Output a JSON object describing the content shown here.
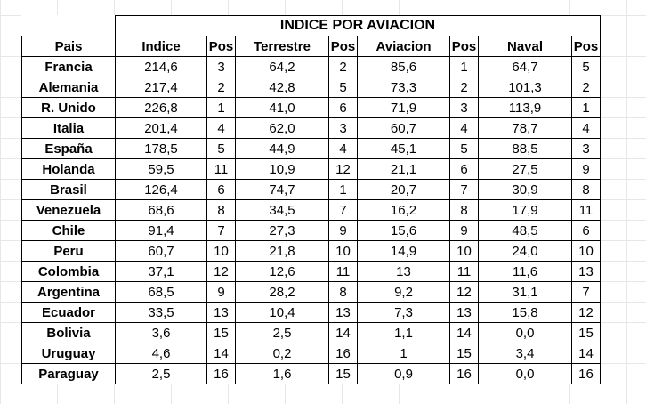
{
  "title": "INDICE POR AVIACION",
  "headers": [
    "Pais",
    "Indice",
    "Pos",
    "Terrestre",
    "Pos",
    "Aviacion",
    "Pos",
    "Naval",
    "Pos"
  ],
  "rows": [
    [
      "Francia",
      "214,6",
      "3",
      "64,2",
      "2",
      "85,6",
      "1",
      "64,7",
      "5"
    ],
    [
      "Alemania",
      "217,4",
      "2",
      "42,8",
      "5",
      "73,3",
      "2",
      "101,3",
      "2"
    ],
    [
      "R. Unido",
      "226,8",
      "1",
      "41,0",
      "6",
      "71,9",
      "3",
      "113,9",
      "1"
    ],
    [
      "Italia",
      "201,4",
      "4",
      "62,0",
      "3",
      "60,7",
      "4",
      "78,7",
      "4"
    ],
    [
      "España",
      "178,5",
      "5",
      "44,9",
      "4",
      "45,1",
      "5",
      "88,5",
      "3"
    ],
    [
      "Holanda",
      "59,5",
      "11",
      "10,9",
      "12",
      "21,1",
      "6",
      "27,5",
      "9"
    ],
    [
      "Brasil",
      "126,4",
      "6",
      "74,7",
      "1",
      "20,7",
      "7",
      "30,9",
      "8"
    ],
    [
      "Venezuela",
      "68,6",
      "8",
      "34,5",
      "7",
      "16,2",
      "8",
      "17,9",
      "11"
    ],
    [
      "Chile",
      "91,4",
      "7",
      "27,3",
      "9",
      "15,6",
      "9",
      "48,5",
      "6"
    ],
    [
      "Peru",
      "60,7",
      "10",
      "21,8",
      "10",
      "14,9",
      "10",
      "24,0",
      "10"
    ],
    [
      "Colombia",
      "37,1",
      "12",
      "12,6",
      "11",
      "13",
      "11",
      "11,6",
      "13"
    ],
    [
      "Argentina",
      "68,5",
      "9",
      "28,2",
      "8",
      "9,2",
      "12",
      "31,1",
      "7"
    ],
    [
      "Ecuador",
      "33,5",
      "13",
      "10,4",
      "13",
      "7,3",
      "13",
      "15,8",
      "12"
    ],
    [
      "Bolivia",
      "3,6",
      "15",
      "2,5",
      "14",
      "1,1",
      "14",
      "0,0",
      "15"
    ],
    [
      "Uruguay",
      "4,6",
      "14",
      "0,2",
      "16",
      "1",
      "15",
      "3,4",
      "14"
    ],
    [
      "Paraguay",
      "2,5",
      "16",
      "1,6",
      "15",
      "0,9",
      "16",
      "0,0",
      "16"
    ]
  ]
}
